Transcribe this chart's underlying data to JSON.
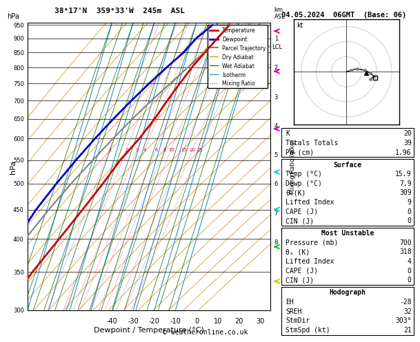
{
  "title_left": "38°17'N  359°33'W  245m  ASL",
  "title_right": "04.05.2024  06GMT  (Base: 06)",
  "xlabel": "Dewpoint / Temperature (°C)",
  "ylabel_left": "hPa",
  "mixing_ratio_values": [
    1,
    2,
    3,
    4,
    6,
    8,
    10,
    15,
    20,
    25
  ],
  "km_ticks": [
    1,
    2,
    3,
    4,
    5,
    6,
    7,
    8
  ],
  "lcl_pressure": 870,
  "temperature_profile": {
    "pressure": [
      950,
      925,
      900,
      850,
      800,
      750,
      700,
      650,
      600,
      550,
      500,
      450,
      400,
      350,
      300
    ],
    "temp": [
      15.9,
      14.0,
      12.0,
      8.0,
      4.0,
      0.5,
      -3.0,
      -6.5,
      -11.0,
      -17.0,
      -22.0,
      -28.0,
      -35.0,
      -43.0,
      -51.0
    ]
  },
  "dewpoint_profile": {
    "pressure": [
      950,
      925,
      900,
      850,
      800,
      750,
      700,
      650,
      600,
      550,
      500,
      450,
      400,
      350,
      300
    ],
    "temp": [
      7.9,
      5.0,
      2.0,
      -2.0,
      -8.0,
      -14.0,
      -20.0,
      -26.0,
      -32.0,
      -38.0,
      -44.0,
      -50.0,
      -55.0,
      -55.0,
      -54.0
    ]
  },
  "parcel_profile": {
    "pressure": [
      950,
      900,
      870,
      850,
      800,
      750,
      700,
      650,
      600,
      550,
      500,
      450,
      400,
      350,
      300
    ],
    "temp": [
      15.9,
      12.5,
      10.5,
      8.0,
      2.0,
      -4.0,
      -10.5,
      -17.0,
      -23.5,
      -30.0,
      -37.0,
      -44.0,
      -51.0,
      -58.0,
      -65.0
    ]
  },
  "color_temperature": "#cc0000",
  "color_dewpoint": "#0000cc",
  "color_parcel": "#808080",
  "color_dry_adiabat": "#cc8800",
  "color_wet_adiabat": "#006600",
  "color_isotherm": "#0088cc",
  "color_mixing_ratio": "#cc0066",
  "background": "#ffffff",
  "info_K": 20,
  "info_TT": 39,
  "info_PW": 1.96,
  "info_surf_temp": 15.9,
  "info_surf_dewp": 7.9,
  "info_surf_theta": 309,
  "info_surf_li": 9,
  "info_surf_cape": 0,
  "info_surf_cin": 0,
  "info_mu_pres": 700,
  "info_mu_theta": 318,
  "info_mu_li": 4,
  "info_mu_cape": 0,
  "info_mu_cin": 0,
  "info_eh": -28,
  "info_sreh": 32,
  "info_stmdir": "303°",
  "info_stmspd": 21,
  "copyright": "© weatheronline.co.uk"
}
